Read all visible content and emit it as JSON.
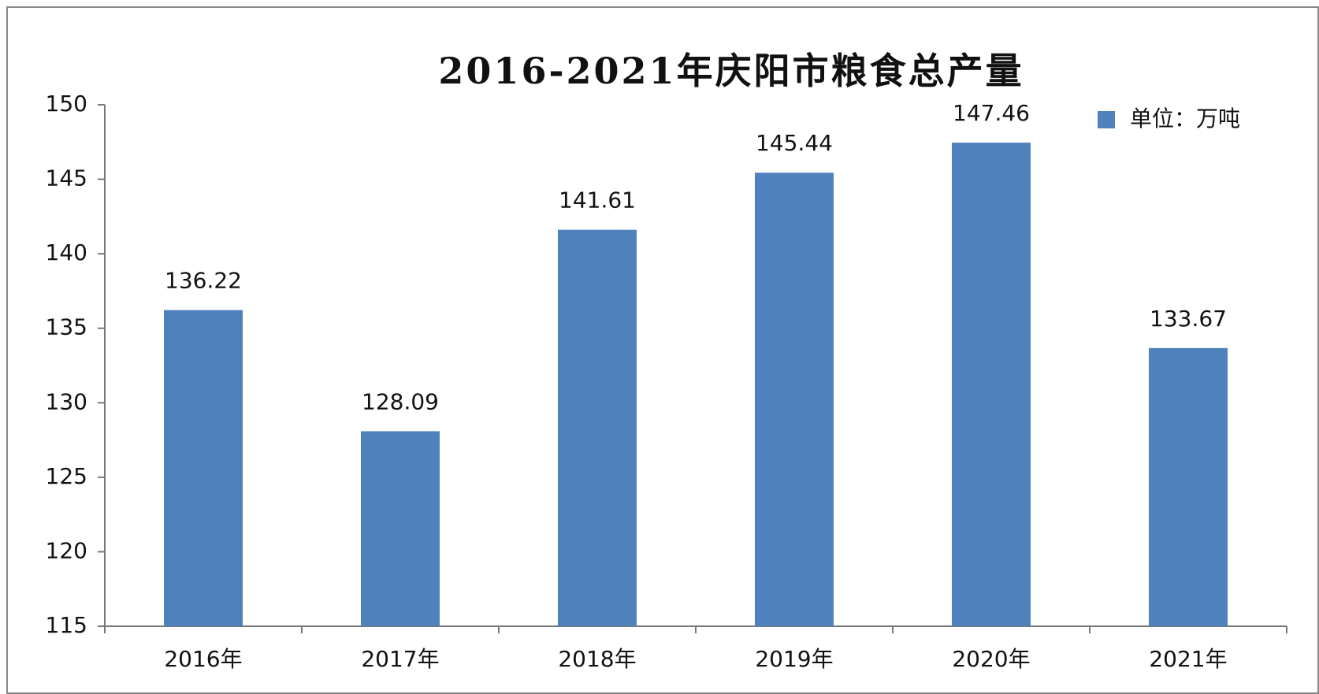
{
  "chart_data": {
    "type": "bar",
    "title": "2016-2021年庆阳市粮食总产量",
    "categories": [
      "2016年",
      "2017年",
      "2018年",
      "2019年",
      "2020年",
      "2021年"
    ],
    "series": [
      {
        "name": "单位：万吨",
        "color": "#4f81bd",
        "values": [
          136.22,
          128.09,
          141.61,
          145.44,
          147.46,
          133.67
        ]
      }
    ],
    "ylim": [
      115,
      150
    ],
    "yticks": [
      115,
      120,
      125,
      130,
      135,
      140,
      145,
      150
    ],
    "grid": false,
    "legend": "top-right",
    "data_labels": true
  }
}
